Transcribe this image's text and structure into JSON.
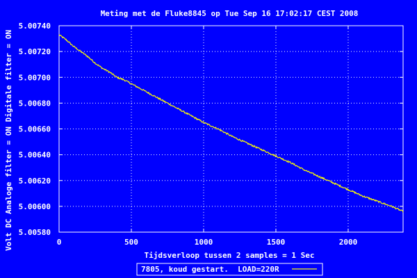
{
  "chart_data": {
    "type": "line",
    "title": "Meting met de Fluke8845 op Tue Sep 16 17:02:17 CEST 2008",
    "xlabel": "Tijdsverloop tussen 2 samples = 1 Sec",
    "ylabel": "Volt DC    Analoge filter = ON    Digitale filter = ON",
    "xlim": [
      0,
      2380
    ],
    "ylim": [
      5.0058,
      5.0074
    ],
    "x_ticks": [
      0,
      500,
      1000,
      1500,
      2000
    ],
    "x_tick_labels": [
      "0",
      "500",
      "1000",
      "1500",
      "2000"
    ],
    "y_ticks": [
      5.0058,
      5.006,
      5.0062,
      5.0064,
      5.0066,
      5.0068,
      5.007,
      5.0072,
      5.0074
    ],
    "y_tick_labels": [
      "5.00580",
      "5.00600",
      "5.00620",
      "5.00640",
      "5.00660",
      "5.00680",
      "5.00700",
      "5.00720",
      "5.00740"
    ],
    "grid": true,
    "legend_position": "bottom-center",
    "series": [
      {
        "name": "7805, koud gestart.  LOAD=220R",
        "color": "#FFFF00",
        "x": [
          0,
          50,
          100,
          150,
          200,
          250,
          300,
          350,
          400,
          450,
          500,
          600,
          700,
          800,
          900,
          1000,
          1100,
          1200,
          1300,
          1400,
          1500,
          1600,
          1700,
          1800,
          1900,
          2000,
          2100,
          2200,
          2300,
          2380
        ],
        "values": [
          5.00733,
          5.00729,
          5.00724,
          5.0072,
          5.00716,
          5.00711,
          5.00707,
          5.00704,
          5.007,
          5.00698,
          5.00695,
          5.00689,
          5.00683,
          5.00677,
          5.00671,
          5.00665,
          5.0066,
          5.00654,
          5.00649,
          5.00644,
          5.00639,
          5.00634,
          5.00628,
          5.00623,
          5.00618,
          5.00613,
          5.00608,
          5.00604,
          5.006,
          5.00596
        ]
      }
    ]
  }
}
